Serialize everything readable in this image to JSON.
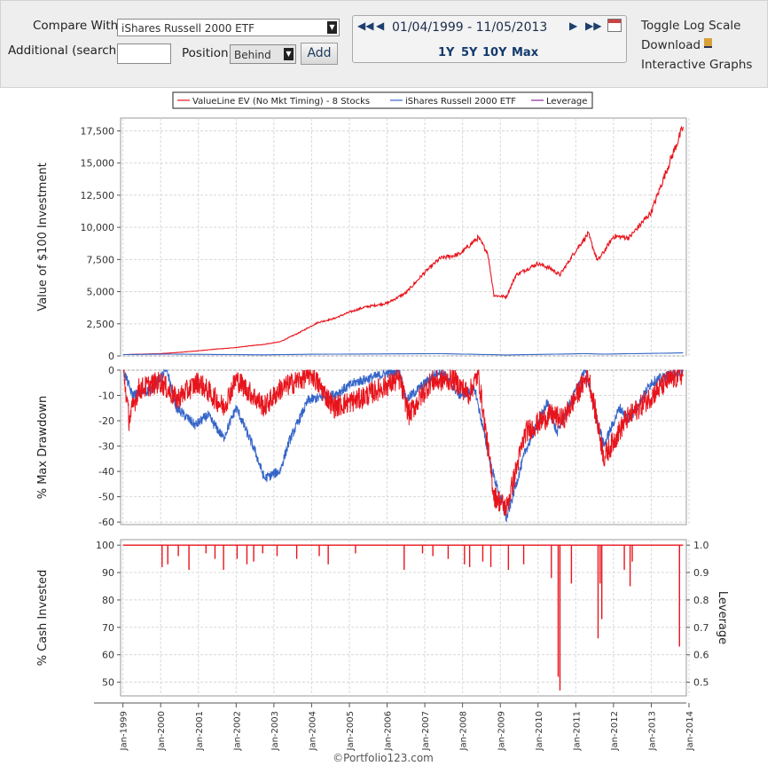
{
  "toolbar": {
    "compare_label": "Compare With",
    "compare_value": "iShares Russell 2000 ETF",
    "additional_label": "Additional",
    "additional_hint": "(search)",
    "position_label": "Position",
    "position_value": "Behind",
    "add_label": "Add",
    "date_range": "01/04/1999 - 11/05/2013",
    "quick_ranges": [
      "1Y",
      "5Y",
      "10Y",
      "Max"
    ],
    "toggle_log": "Toggle Log Scale",
    "download": "Download",
    "interactive": "Interactive Graphs"
  },
  "colors": {
    "series1": "#e8141c",
    "series2": "#3464c8",
    "series3": "#8a2a9a",
    "grid": "#d8d8d8"
  },
  "footer": "©Portfolio123.com",
  "chart_data": [
    {
      "type": "line",
      "id": "value",
      "ylabel": "Value of $100 Investment",
      "ylim": [
        0,
        18500
      ],
      "yticks": [
        0,
        2500,
        5000,
        7500,
        10000,
        12500,
        15000,
        17500
      ],
      "ytick_labels": [
        "0",
        "2,500",
        "5,000",
        "7,500",
        "10,000",
        "12,500",
        "15,000",
        "17,500"
      ],
      "legend": {
        "placement": "top",
        "entries": [
          "ValueLine EV (No Mkt Timing) - 8 Stocks",
          "iShares Russell 2000 ETF",
          "Leverage"
        ]
      },
      "grid": true,
      "series": [
        {
          "name": "ValueLine EV (No Mkt Timing) - 8 Stocks",
          "points": [
            [
              "1999-01-04",
              100
            ],
            [
              "2000-01-01",
              180
            ],
            [
              "2000-06-01",
              260
            ],
            [
              "2001-01-01",
              400
            ],
            [
              "2001-06-01",
              520
            ],
            [
              "2002-01-01",
              650
            ],
            [
              "2002-06-01",
              800
            ],
            [
              "2002-10-01",
              900
            ],
            [
              "2003-03-01",
              1100
            ],
            [
              "2003-09-01",
              1800
            ],
            [
              "2004-03-01",
              2600
            ],
            [
              "2004-08-01",
              2900
            ],
            [
              "2005-01-01",
              3400
            ],
            [
              "2005-06-01",
              3800
            ],
            [
              "2006-01-01",
              4100
            ],
            [
              "2006-07-01",
              4900
            ],
            [
              "2007-01-01",
              6500
            ],
            [
              "2007-06-01",
              7600
            ],
            [
              "2007-12-01",
              7900
            ],
            [
              "2008-06-01",
              9200
            ],
            [
              "2008-09-01",
              8000
            ],
            [
              "2008-11-01",
              4700
            ],
            [
              "2009-03-01",
              4600
            ],
            [
              "2009-06-01",
              6300
            ],
            [
              "2010-01-01",
              7200
            ],
            [
              "2010-05-01",
              6800
            ],
            [
              "2010-08-01",
              6300
            ],
            [
              "2011-01-01",
              8200
            ],
            [
              "2011-05-01",
              9500
            ],
            [
              "2011-08-01",
              7400
            ],
            [
              "2011-10-01",
              8100
            ],
            [
              "2012-01-01",
              9300
            ],
            [
              "2012-06-01",
              9200
            ],
            [
              "2013-01-01",
              11200
            ],
            [
              "2013-06-01",
              14500
            ],
            [
              "2013-11-05",
              17800
            ]
          ]
        },
        {
          "name": "iShares Russell 2000 ETF",
          "points": [
            [
              "1999-01-04",
              100
            ],
            [
              "2000-03-01",
              140
            ],
            [
              "2002-10-01",
              85
            ],
            [
              "2004-01-01",
              130
            ],
            [
              "2007-06-01",
              175
            ],
            [
              "2009-03-01",
              75
            ],
            [
              "2011-04-01",
              175
            ],
            [
              "2011-10-01",
              140
            ],
            [
              "2013-11-05",
              235
            ]
          ]
        }
      ]
    },
    {
      "type": "area",
      "id": "drawdown",
      "ylabel": "% Max Drawdown",
      "ylim": [
        -61,
        0
      ],
      "yticks": [
        0,
        -10,
        -20,
        -30,
        -40,
        -50,
        -60
      ],
      "ytick_labels": [
        "0",
        "-10",
        "-20",
        "-30",
        "-40",
        "-50",
        "-60"
      ],
      "grid": true,
      "series": [
        {
          "name": "iShares Russell 2000 ETF",
          "points": [
            [
              "1999-01-04",
              0
            ],
            [
              "1999-04-01",
              -10
            ],
            [
              "1999-10-01",
              -8
            ],
            [
              "2000-03-01",
              0
            ],
            [
              "2000-06-01",
              -15
            ],
            [
              "2000-12-01",
              -22
            ],
            [
              "2001-04-01",
              -18
            ],
            [
              "2001-09-01",
              -27
            ],
            [
              "2002-01-01",
              -15
            ],
            [
              "2002-07-01",
              -32
            ],
            [
              "2002-10-01",
              -43
            ],
            [
              "2003-03-01",
              -40
            ],
            [
              "2003-06-01",
              -28
            ],
            [
              "2003-12-01",
              -12
            ],
            [
              "2004-08-01",
              -10
            ],
            [
              "2005-03-01",
              -5
            ],
            [
              "2006-05-01",
              0
            ],
            [
              "2006-07-01",
              -12
            ],
            [
              "2007-06-01",
              0
            ],
            [
              "2007-12-01",
              -10
            ],
            [
              "2008-05-01",
              -8
            ],
            [
              "2008-10-01",
              -38
            ],
            [
              "2009-03-01",
              -59
            ],
            [
              "2009-09-01",
              -32
            ],
            [
              "2010-04-01",
              -13
            ],
            [
              "2010-07-01",
              -25
            ],
            [
              "2011-04-01",
              0
            ],
            [
              "2011-10-01",
              -30
            ],
            [
              "2012-03-01",
              -15
            ],
            [
              "2012-06-01",
              -20
            ],
            [
              "2013-01-01",
              -5
            ],
            [
              "2013-11-05",
              0
            ]
          ]
        },
        {
          "name": "ValueLine EV (No Mkt Timing) - 8 Stocks",
          "points": [
            [
              "1999-01-04",
              0
            ],
            [
              "1999-03-01",
              -20
            ],
            [
              "1999-06-01",
              -8
            ],
            [
              "2000-01-01",
              -5
            ],
            [
              "2000-06-01",
              -12
            ],
            [
              "2001-01-01",
              -5
            ],
            [
              "2001-09-01",
              -15
            ],
            [
              "2002-01-01",
              -4
            ],
            [
              "2002-06-01",
              -10
            ],
            [
              "2002-10-01",
              -15
            ],
            [
              "2003-03-01",
              -8
            ],
            [
              "2004-01-01",
              -2
            ],
            [
              "2004-08-01",
              -15
            ],
            [
              "2005-04-01",
              -12
            ],
            [
              "2006-05-01",
              -4
            ],
            [
              "2006-08-01",
              -18
            ],
            [
              "2007-03-01",
              -5
            ],
            [
              "2007-10-01",
              -4
            ],
            [
              "2008-03-01",
              -10
            ],
            [
              "2008-06-01",
              -2
            ],
            [
              "2008-11-01",
              -50
            ],
            [
              "2009-03-01",
              -55
            ],
            [
              "2009-09-01",
              -25
            ],
            [
              "2010-05-01",
              -18
            ],
            [
              "2010-09-01",
              -20
            ],
            [
              "2011-05-01",
              -2
            ],
            [
              "2011-10-01",
              -35
            ],
            [
              "2012-05-01",
              -20
            ],
            [
              "2013-06-01",
              -5
            ],
            [
              "2013-11-05",
              -2
            ]
          ]
        }
      ]
    },
    {
      "type": "line",
      "id": "cash",
      "ylabel": "% Cash Invested",
      "y2label": "Leverage",
      "ylim": [
        45,
        102
      ],
      "yticks": [
        50,
        60,
        70,
        80,
        90,
        100
      ],
      "ytick_labels": [
        "50",
        "60",
        "70",
        "80",
        "90",
        "100"
      ],
      "y2ticks": [
        0.5,
        0.6,
        0.7,
        0.8,
        0.9,
        1.0
      ],
      "y2tick_labels": [
        "0.5",
        "0.6",
        "0.7",
        "0.8",
        "0.9",
        "1.0"
      ],
      "grid": true,
      "series": [
        {
          "name": "ValueLine EV (No Mkt Timing) - 8 Stocks",
          "baseline": 100,
          "dips": [
            [
              "2000-01-15",
              92
            ],
            [
              "2000-03-10",
              93
            ],
            [
              "2000-06-20",
              96
            ],
            [
              "2000-10-01",
              91
            ],
            [
              "2001-03-15",
              97
            ],
            [
              "2001-06-10",
              95
            ],
            [
              "2001-09-01",
              91
            ],
            [
              "2002-01-10",
              95
            ],
            [
              "2002-04-15",
              93
            ],
            [
              "2002-06-20",
              94
            ],
            [
              "2002-09-15",
              97
            ],
            [
              "2003-02-01",
              96
            ],
            [
              "2003-08-10",
              95
            ],
            [
              "2004-03-15",
              96
            ],
            [
              "2004-06-10",
              93
            ],
            [
              "2005-03-01",
              97
            ],
            [
              "2006-06-15",
              91
            ],
            [
              "2006-12-10",
              97
            ],
            [
              "2007-03-20",
              96
            ],
            [
              "2007-08-15",
              95
            ],
            [
              "2008-01-20",
              93
            ],
            [
              "2008-03-10",
              92
            ],
            [
              "2008-07-15",
              94
            ],
            [
              "2008-10-01",
              92
            ],
            [
              "2009-03-20",
              91
            ],
            [
              "2009-08-15",
              93
            ],
            [
              "2010-05-10",
              88
            ],
            [
              "2010-07-15",
              52
            ],
            [
              "2010-08-01",
              47
            ],
            [
              "2010-11-20",
              86
            ],
            [
              "2011-08-05",
              66
            ],
            [
              "2011-08-25",
              86
            ],
            [
              "2011-09-10",
              73
            ],
            [
              "2012-04-15",
              91
            ],
            [
              "2012-06-10",
              85
            ],
            [
              "2012-07-01",
              94
            ],
            [
              "2013-10-01",
              63
            ]
          ]
        }
      ]
    }
  ],
  "x_axis": {
    "start": "1999-01-04",
    "end": "2013-11-05",
    "tick_labels": [
      "Jan-1999",
      "Jan-2000",
      "Jan-2001",
      "Jan-2002",
      "Jan-2003",
      "Jan-2004",
      "Jan-2005",
      "Jan-2006",
      "Jan-2007",
      "Jan-2008",
      "Jan-2009",
      "Jan-2010",
      "Jan-2011",
      "Jan-2012",
      "Jan-2013",
      "Jan-2014"
    ]
  }
}
